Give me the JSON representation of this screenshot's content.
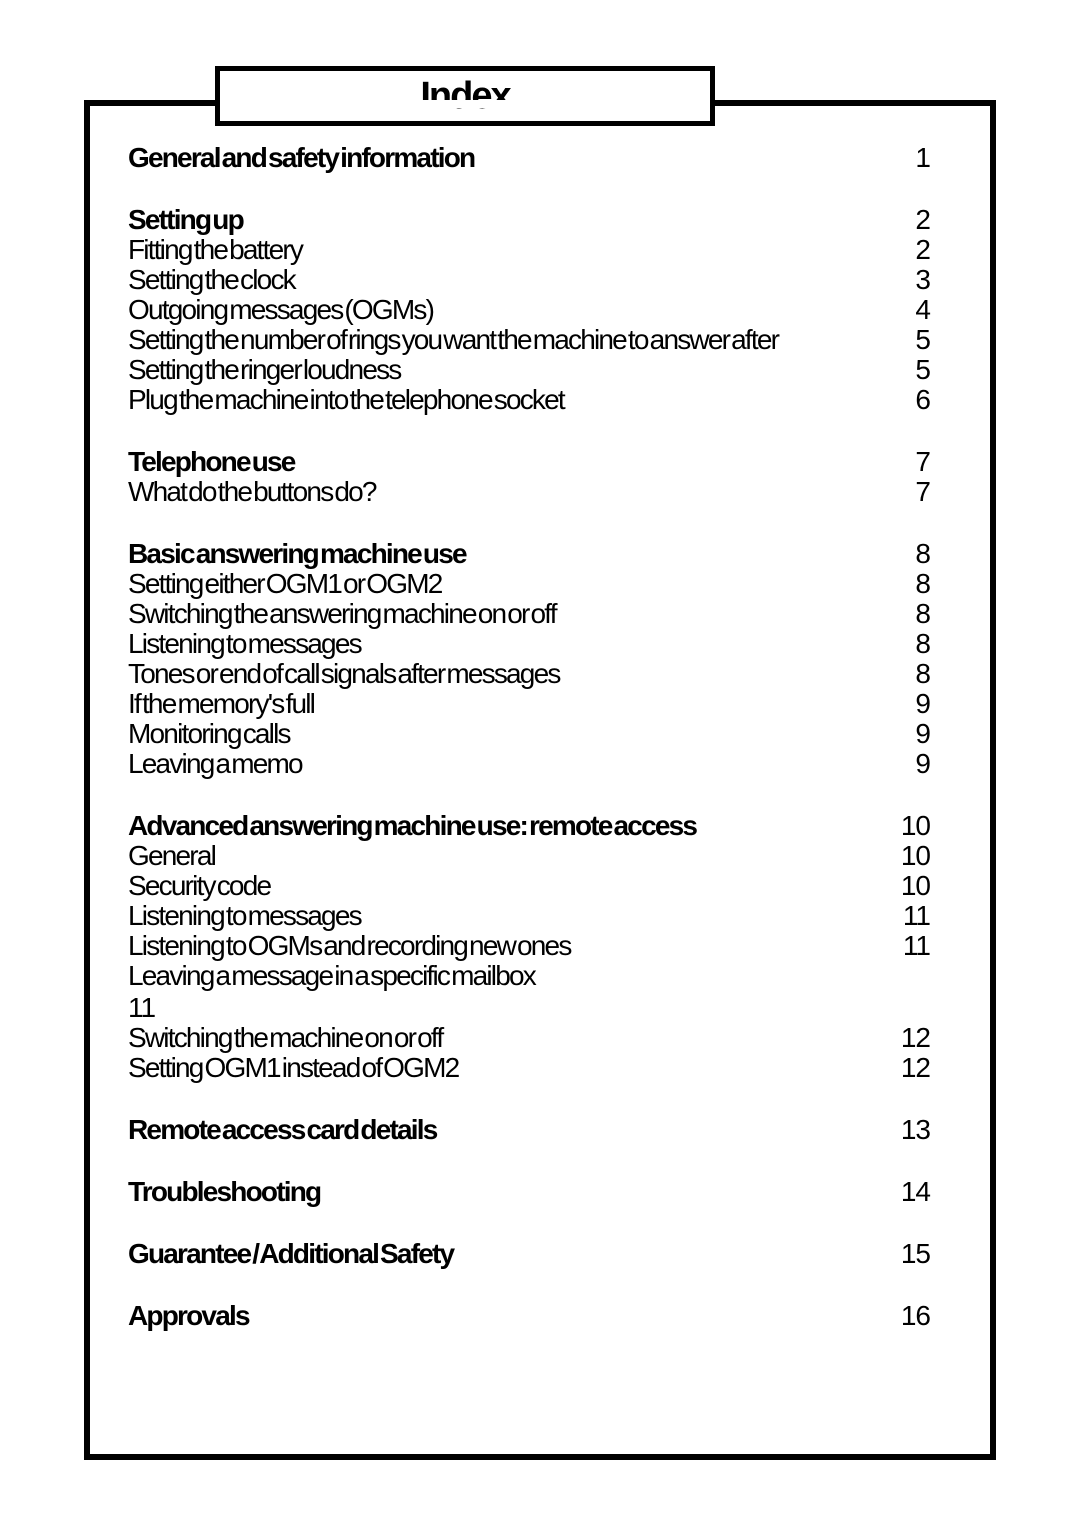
{
  "title": "Index",
  "colors": {
    "text": "#000000",
    "background": "#ffffff",
    "border": "#000000"
  },
  "typography": {
    "font_family": "Arial",
    "title_fontsize": 38,
    "body_fontsize": 28
  },
  "sections": [
    {
      "rows": [
        {
          "label": "General and safety information",
          "page": "1",
          "bold": true
        }
      ]
    },
    {
      "rows": [
        {
          "label": "Setting up",
          "page": "2",
          "bold": true
        },
        {
          "label": "Fitting the battery",
          "page": "2",
          "bold": false
        },
        {
          "label": "Setting the clock",
          "page": "3",
          "bold": false
        },
        {
          "label": "Outgoing messages (OGMs)",
          "page": "4",
          "bold": false
        },
        {
          "label": "Setting the number of rings you want the machine to answer after",
          "page": "5",
          "bold": false
        },
        {
          "label": "Setting the ringer loudness",
          "page": "5",
          "bold": false
        },
        {
          "label": "Plug the machine into the telephone socket",
          "page": "6",
          "bold": false
        }
      ]
    },
    {
      "rows": [
        {
          "label": "Telephone use",
          "page": "7",
          "bold": true
        },
        {
          "label": "What do the buttons do?",
          "page": "7",
          "bold": false
        }
      ]
    },
    {
      "rows": [
        {
          "label": "Basic answering machine use",
          "page": "8",
          "bold": true
        },
        {
          "label": "Setting either OGM1 or OGM2",
          "page": "8",
          "bold": false
        },
        {
          "label": "Switching the answering machine on or off",
          "page": "8",
          "bold": false
        },
        {
          "label": "Listening to messages",
          "page": "8",
          "bold": false
        },
        {
          "label": "Tones or end of call signals after messages",
          "page": "8",
          "bold": false
        },
        {
          "label": "If the memory's full",
          "page": "9",
          "bold": false
        },
        {
          "label": "Monitoring calls",
          "page": "9",
          "bold": false
        },
        {
          "label": "Leaving a memo",
          "page": "9",
          "bold": false
        }
      ]
    },
    {
      "rows": [
        {
          "label": "Advanced answering machine use: remote access",
          "page": "10",
          "bold": true
        },
        {
          "label": "General",
          "page": "10",
          "bold": false
        },
        {
          "label": "Security code",
          "page": "10",
          "bold": false
        },
        {
          "label": "Listening to messages",
          "page": "11",
          "bold": false
        },
        {
          "label": "Listening to OGMs and recording new ones",
          "page": "11",
          "bold": false
        },
        {
          "label": "Leaving a message in a specific mailbox",
          "page": "",
          "bold": false
        }
      ],
      "orphan_page": "11",
      "rows_after": [
        {
          "label": "Switching the machine on or off",
          "page": "12",
          "bold": false
        },
        {
          "label": "Setting OGM1 instead of OGM2",
          "page": "12",
          "bold": false
        }
      ]
    },
    {
      "rows": [
        {
          "label": "Remote access card details",
          "page": "13",
          "bold": true
        }
      ]
    },
    {
      "rows": [
        {
          "label": "Troubleshooting",
          "page": "14",
          "bold": true
        }
      ]
    },
    {
      "rows": [
        {
          "label": "Guarantee / Additional Safety",
          "page": "15",
          "bold": true
        }
      ]
    },
    {
      "rows": [
        {
          "label": "Approvals",
          "page": "16",
          "bold": true
        }
      ]
    }
  ]
}
